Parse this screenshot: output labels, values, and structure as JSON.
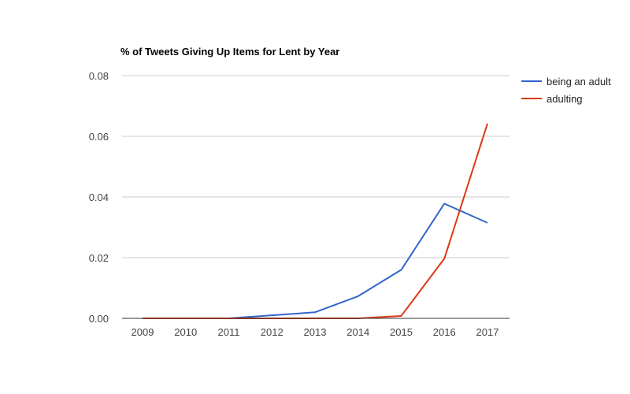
{
  "chart_data": {
    "type": "line",
    "title": "% of Tweets Giving Up Items for Lent by Year",
    "xlabel": "",
    "ylabel": "",
    "categories": [
      "2009",
      "2010",
      "2011",
      "2012",
      "2013",
      "2014",
      "2015",
      "2016",
      "2017"
    ],
    "ylim": [
      0,
      0.08
    ],
    "yticks": [
      "0.00",
      "0.02",
      "0.04",
      "0.06",
      "0.08"
    ],
    "grid": true,
    "legend_position": "right",
    "series": [
      {
        "name": "being an adult",
        "color": "#3366cc",
        "values": [
          0,
          0,
          0,
          0.001,
          0.002,
          0.0073,
          0.016,
          0.0378,
          0.0315
        ]
      },
      {
        "name": "adulting",
        "color": "#dc3912",
        "values": [
          0,
          0,
          0,
          0,
          0,
          0,
          0.0008,
          0.0197,
          0.0642
        ]
      }
    ]
  }
}
